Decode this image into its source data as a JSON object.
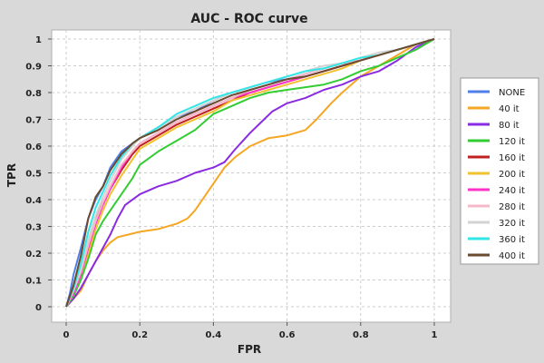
{
  "chart_data": {
    "type": "line",
    "title": "AUC - ROC curve",
    "xlabel": "FPR",
    "ylabel": "TPR",
    "xlim": [
      0,
      1
    ],
    "ylim": [
      0,
      1
    ],
    "grid": true,
    "legend_placement": "right",
    "x_ticks": [
      0,
      0.2,
      0.4,
      0.6,
      0.8,
      1
    ],
    "x_tick_labels": [
      "0",
      "0.2",
      "0.4",
      "0.6",
      "0.8",
      "1"
    ],
    "y_ticks": [
      0,
      0.1,
      0.2,
      0.3,
      0.4,
      0.5,
      0.6,
      0.7,
      0.8,
      0.9,
      1
    ],
    "y_tick_labels": [
      "0",
      "0.1",
      "0.2",
      "0.3",
      "0.4",
      "0.5",
      "0.6",
      "0.7",
      "0.8",
      "0.9",
      "1"
    ],
    "series": [
      {
        "name": "NONE",
        "color": "#4f7fe8",
        "points": [
          [
            0,
            0
          ],
          [
            0.01,
            0.05
          ],
          [
            0.02,
            0.12
          ],
          [
            0.04,
            0.22
          ],
          [
            0.06,
            0.33
          ],
          [
            0.08,
            0.4
          ],
          [
            0.1,
            0.45
          ],
          [
            0.12,
            0.52
          ],
          [
            0.15,
            0.58
          ],
          [
            0.2,
            0.63
          ],
          [
            0.25,
            0.67
          ],
          [
            0.3,
            0.71
          ],
          [
            0.35,
            0.73
          ],
          [
            0.4,
            0.77
          ],
          [
            0.45,
            0.8
          ],
          [
            0.5,
            0.82
          ],
          [
            0.55,
            0.84
          ],
          [
            0.6,
            0.85
          ],
          [
            0.65,
            0.87
          ],
          [
            0.7,
            0.89
          ],
          [
            0.75,
            0.91
          ],
          [
            0.8,
            0.92
          ],
          [
            0.85,
            0.94
          ],
          [
            0.9,
            0.96
          ],
          [
            0.95,
            0.98
          ],
          [
            1,
            1
          ]
        ]
      },
      {
        "name": "40 it",
        "color": "#f5a623",
        "points": [
          [
            0,
            0
          ],
          [
            0.02,
            0.03
          ],
          [
            0.04,
            0.06
          ],
          [
            0.06,
            0.12
          ],
          [
            0.08,
            0.17
          ],
          [
            0.1,
            0.21
          ],
          [
            0.12,
            0.24
          ],
          [
            0.14,
            0.26
          ],
          [
            0.17,
            0.27
          ],
          [
            0.2,
            0.28
          ],
          [
            0.25,
            0.29
          ],
          [
            0.3,
            0.31
          ],
          [
            0.33,
            0.33
          ],
          [
            0.35,
            0.36
          ],
          [
            0.38,
            0.42
          ],
          [
            0.4,
            0.46
          ],
          [
            0.43,
            0.52
          ],
          [
            0.46,
            0.56
          ],
          [
            0.5,
            0.6
          ],
          [
            0.55,
            0.63
          ],
          [
            0.6,
            0.64
          ],
          [
            0.65,
            0.66
          ],
          [
            0.68,
            0.7
          ],
          [
            0.7,
            0.73
          ],
          [
            0.72,
            0.76
          ],
          [
            0.75,
            0.8
          ],
          [
            0.8,
            0.86
          ],
          [
            0.85,
            0.9
          ],
          [
            0.9,
            0.94
          ],
          [
            0.95,
            0.98
          ],
          [
            1,
            1
          ]
        ]
      },
      {
        "name": "80 it",
        "color": "#8a2be2",
        "points": [
          [
            0,
            0
          ],
          [
            0.02,
            0.03
          ],
          [
            0.04,
            0.07
          ],
          [
            0.06,
            0.12
          ],
          [
            0.08,
            0.17
          ],
          [
            0.1,
            0.22
          ],
          [
            0.12,
            0.27
          ],
          [
            0.14,
            0.33
          ],
          [
            0.16,
            0.38
          ],
          [
            0.2,
            0.42
          ],
          [
            0.25,
            0.45
          ],
          [
            0.3,
            0.47
          ],
          [
            0.35,
            0.5
          ],
          [
            0.4,
            0.52
          ],
          [
            0.43,
            0.54
          ],
          [
            0.46,
            0.59
          ],
          [
            0.5,
            0.65
          ],
          [
            0.53,
            0.69
          ],
          [
            0.56,
            0.73
          ],
          [
            0.6,
            0.76
          ],
          [
            0.65,
            0.78
          ],
          [
            0.7,
            0.81
          ],
          [
            0.75,
            0.83
          ],
          [
            0.8,
            0.86
          ],
          [
            0.85,
            0.88
          ],
          [
            0.9,
            0.92
          ],
          [
            0.95,
            0.97
          ],
          [
            1,
            1
          ]
        ]
      },
      {
        "name": "120 it",
        "color": "#33cc33",
        "points": [
          [
            0,
            0
          ],
          [
            0.02,
            0.04
          ],
          [
            0.04,
            0.1
          ],
          [
            0.06,
            0.18
          ],
          [
            0.08,
            0.27
          ],
          [
            0.1,
            0.32
          ],
          [
            0.12,
            0.36
          ],
          [
            0.15,
            0.42
          ],
          [
            0.18,
            0.48
          ],
          [
            0.2,
            0.53
          ],
          [
            0.25,
            0.58
          ],
          [
            0.3,
            0.62
          ],
          [
            0.35,
            0.66
          ],
          [
            0.4,
            0.72
          ],
          [
            0.45,
            0.75
          ],
          [
            0.5,
            0.78
          ],
          [
            0.55,
            0.8
          ],
          [
            0.6,
            0.81
          ],
          [
            0.65,
            0.82
          ],
          [
            0.7,
            0.83
          ],
          [
            0.75,
            0.85
          ],
          [
            0.8,
            0.88
          ],
          [
            0.85,
            0.9
          ],
          [
            0.9,
            0.93
          ],
          [
            0.95,
            0.96
          ],
          [
            1,
            1
          ]
        ]
      },
      {
        "name": "160 it",
        "color": "#c02020",
        "points": [
          [
            0,
            0
          ],
          [
            0.02,
            0.06
          ],
          [
            0.04,
            0.14
          ],
          [
            0.06,
            0.24
          ],
          [
            0.08,
            0.33
          ],
          [
            0.1,
            0.39
          ],
          [
            0.12,
            0.44
          ],
          [
            0.15,
            0.51
          ],
          [
            0.18,
            0.57
          ],
          [
            0.2,
            0.6
          ],
          [
            0.25,
            0.64
          ],
          [
            0.3,
            0.68
          ],
          [
            0.35,
            0.71
          ],
          [
            0.4,
            0.74
          ],
          [
            0.45,
            0.77
          ],
          [
            0.5,
            0.8
          ],
          [
            0.55,
            0.82
          ],
          [
            0.6,
            0.84
          ],
          [
            0.65,
            0.86
          ],
          [
            0.7,
            0.88
          ],
          [
            0.75,
            0.9
          ],
          [
            0.8,
            0.92
          ],
          [
            0.85,
            0.94
          ],
          [
            0.9,
            0.96
          ],
          [
            0.95,
            0.98
          ],
          [
            1,
            1
          ]
        ]
      },
      {
        "name": "200 it",
        "color": "#f2c12e",
        "points": [
          [
            0,
            0
          ],
          [
            0.02,
            0.05
          ],
          [
            0.04,
            0.12
          ],
          [
            0.06,
            0.2
          ],
          [
            0.08,
            0.29
          ],
          [
            0.1,
            0.36
          ],
          [
            0.12,
            0.42
          ],
          [
            0.15,
            0.49
          ],
          [
            0.18,
            0.55
          ],
          [
            0.2,
            0.59
          ],
          [
            0.25,
            0.63
          ],
          [
            0.3,
            0.67
          ],
          [
            0.35,
            0.7
          ],
          [
            0.4,
            0.73
          ],
          [
            0.45,
            0.77
          ],
          [
            0.5,
            0.79
          ],
          [
            0.55,
            0.81
          ],
          [
            0.6,
            0.83
          ],
          [
            0.65,
            0.85
          ],
          [
            0.7,
            0.87
          ],
          [
            0.75,
            0.89
          ],
          [
            0.8,
            0.92
          ],
          [
            0.85,
            0.94
          ],
          [
            0.9,
            0.96
          ],
          [
            0.95,
            0.98
          ],
          [
            1,
            1
          ]
        ]
      },
      {
        "name": "240 it",
        "color": "#ff33cc",
        "points": [
          [
            0,
            0
          ],
          [
            0.02,
            0.05
          ],
          [
            0.04,
            0.12
          ],
          [
            0.06,
            0.22
          ],
          [
            0.08,
            0.31
          ],
          [
            0.1,
            0.38
          ],
          [
            0.12,
            0.44
          ],
          [
            0.15,
            0.52
          ],
          [
            0.18,
            0.58
          ],
          [
            0.2,
            0.61
          ],
          [
            0.25,
            0.65
          ],
          [
            0.3,
            0.69
          ],
          [
            0.35,
            0.72
          ],
          [
            0.4,
            0.75
          ],
          [
            0.45,
            0.78
          ],
          [
            0.5,
            0.8
          ],
          [
            0.55,
            0.82
          ],
          [
            0.6,
            0.84
          ],
          [
            0.65,
            0.86
          ],
          [
            0.7,
            0.88
          ],
          [
            0.75,
            0.9
          ],
          [
            0.8,
            0.92
          ],
          [
            0.85,
            0.94
          ],
          [
            0.9,
            0.96
          ],
          [
            0.95,
            0.98
          ],
          [
            1,
            1
          ]
        ]
      },
      {
        "name": "280 it",
        "color": "#f4b8c8",
        "points": [
          [
            0,
            0
          ],
          [
            0.02,
            0.06
          ],
          [
            0.04,
            0.13
          ],
          [
            0.06,
            0.23
          ],
          [
            0.08,
            0.32
          ],
          [
            0.1,
            0.39
          ],
          [
            0.12,
            0.45
          ],
          [
            0.15,
            0.53
          ],
          [
            0.18,
            0.58
          ],
          [
            0.2,
            0.61
          ],
          [
            0.25,
            0.65
          ],
          [
            0.3,
            0.69
          ],
          [
            0.35,
            0.72
          ],
          [
            0.4,
            0.75
          ],
          [
            0.45,
            0.78
          ],
          [
            0.5,
            0.81
          ],
          [
            0.55,
            0.83
          ],
          [
            0.6,
            0.85
          ],
          [
            0.65,
            0.87
          ],
          [
            0.7,
            0.89
          ],
          [
            0.75,
            0.91
          ],
          [
            0.8,
            0.92
          ],
          [
            0.85,
            0.94
          ],
          [
            0.9,
            0.96
          ],
          [
            0.95,
            0.98
          ],
          [
            1,
            1
          ]
        ]
      },
      {
        "name": "320 it",
        "color": "#d3d3d3",
        "points": [
          [
            0,
            0
          ],
          [
            0.02,
            0.06
          ],
          [
            0.04,
            0.14
          ],
          [
            0.06,
            0.25
          ],
          [
            0.08,
            0.34
          ],
          [
            0.1,
            0.41
          ],
          [
            0.12,
            0.47
          ],
          [
            0.15,
            0.55
          ],
          [
            0.18,
            0.6
          ],
          [
            0.2,
            0.63
          ],
          [
            0.25,
            0.67
          ],
          [
            0.3,
            0.71
          ],
          [
            0.35,
            0.74
          ],
          [
            0.4,
            0.77
          ],
          [
            0.45,
            0.8
          ],
          [
            0.5,
            0.82
          ],
          [
            0.55,
            0.84
          ],
          [
            0.6,
            0.86
          ],
          [
            0.65,
            0.88
          ],
          [
            0.7,
            0.9
          ],
          [
            0.75,
            0.91
          ],
          [
            0.8,
            0.93
          ],
          [
            0.85,
            0.95
          ],
          [
            0.9,
            0.96
          ],
          [
            0.95,
            0.98
          ],
          [
            1,
            1
          ]
        ]
      },
      {
        "name": "360 it",
        "color": "#33e6e6",
        "points": [
          [
            0,
            0
          ],
          [
            0.02,
            0.07
          ],
          [
            0.04,
            0.16
          ],
          [
            0.06,
            0.28
          ],
          [
            0.08,
            0.37
          ],
          [
            0.1,
            0.43
          ],
          [
            0.12,
            0.49
          ],
          [
            0.15,
            0.56
          ],
          [
            0.18,
            0.61
          ],
          [
            0.2,
            0.63
          ],
          [
            0.25,
            0.67
          ],
          [
            0.3,
            0.72
          ],
          [
            0.35,
            0.75
          ],
          [
            0.4,
            0.78
          ],
          [
            0.45,
            0.8
          ],
          [
            0.5,
            0.82
          ],
          [
            0.55,
            0.84
          ],
          [
            0.6,
            0.86
          ],
          [
            0.65,
            0.88
          ],
          [
            0.7,
            0.89
          ],
          [
            0.75,
            0.91
          ],
          [
            0.8,
            0.93
          ],
          [
            0.85,
            0.94
          ],
          [
            0.9,
            0.96
          ],
          [
            0.95,
            0.98
          ],
          [
            1,
            1
          ]
        ]
      },
      {
        "name": "400 it",
        "color": "#6b4a2e",
        "points": [
          [
            0,
            0
          ],
          [
            0.02,
            0.08
          ],
          [
            0.04,
            0.19
          ],
          [
            0.06,
            0.33
          ],
          [
            0.08,
            0.41
          ],
          [
            0.1,
            0.45
          ],
          [
            0.12,
            0.51
          ],
          [
            0.15,
            0.57
          ],
          [
            0.18,
            0.61
          ],
          [
            0.2,
            0.63
          ],
          [
            0.25,
            0.66
          ],
          [
            0.3,
            0.7
          ],
          [
            0.35,
            0.73
          ],
          [
            0.4,
            0.76
          ],
          [
            0.45,
            0.79
          ],
          [
            0.5,
            0.81
          ],
          [
            0.55,
            0.83
          ],
          [
            0.6,
            0.85
          ],
          [
            0.65,
            0.86
          ],
          [
            0.7,
            0.88
          ],
          [
            0.75,
            0.9
          ],
          [
            0.8,
            0.92
          ],
          [
            0.85,
            0.94
          ],
          [
            0.9,
            0.96
          ],
          [
            0.95,
            0.98
          ],
          [
            1,
            1
          ]
        ]
      }
    ]
  }
}
